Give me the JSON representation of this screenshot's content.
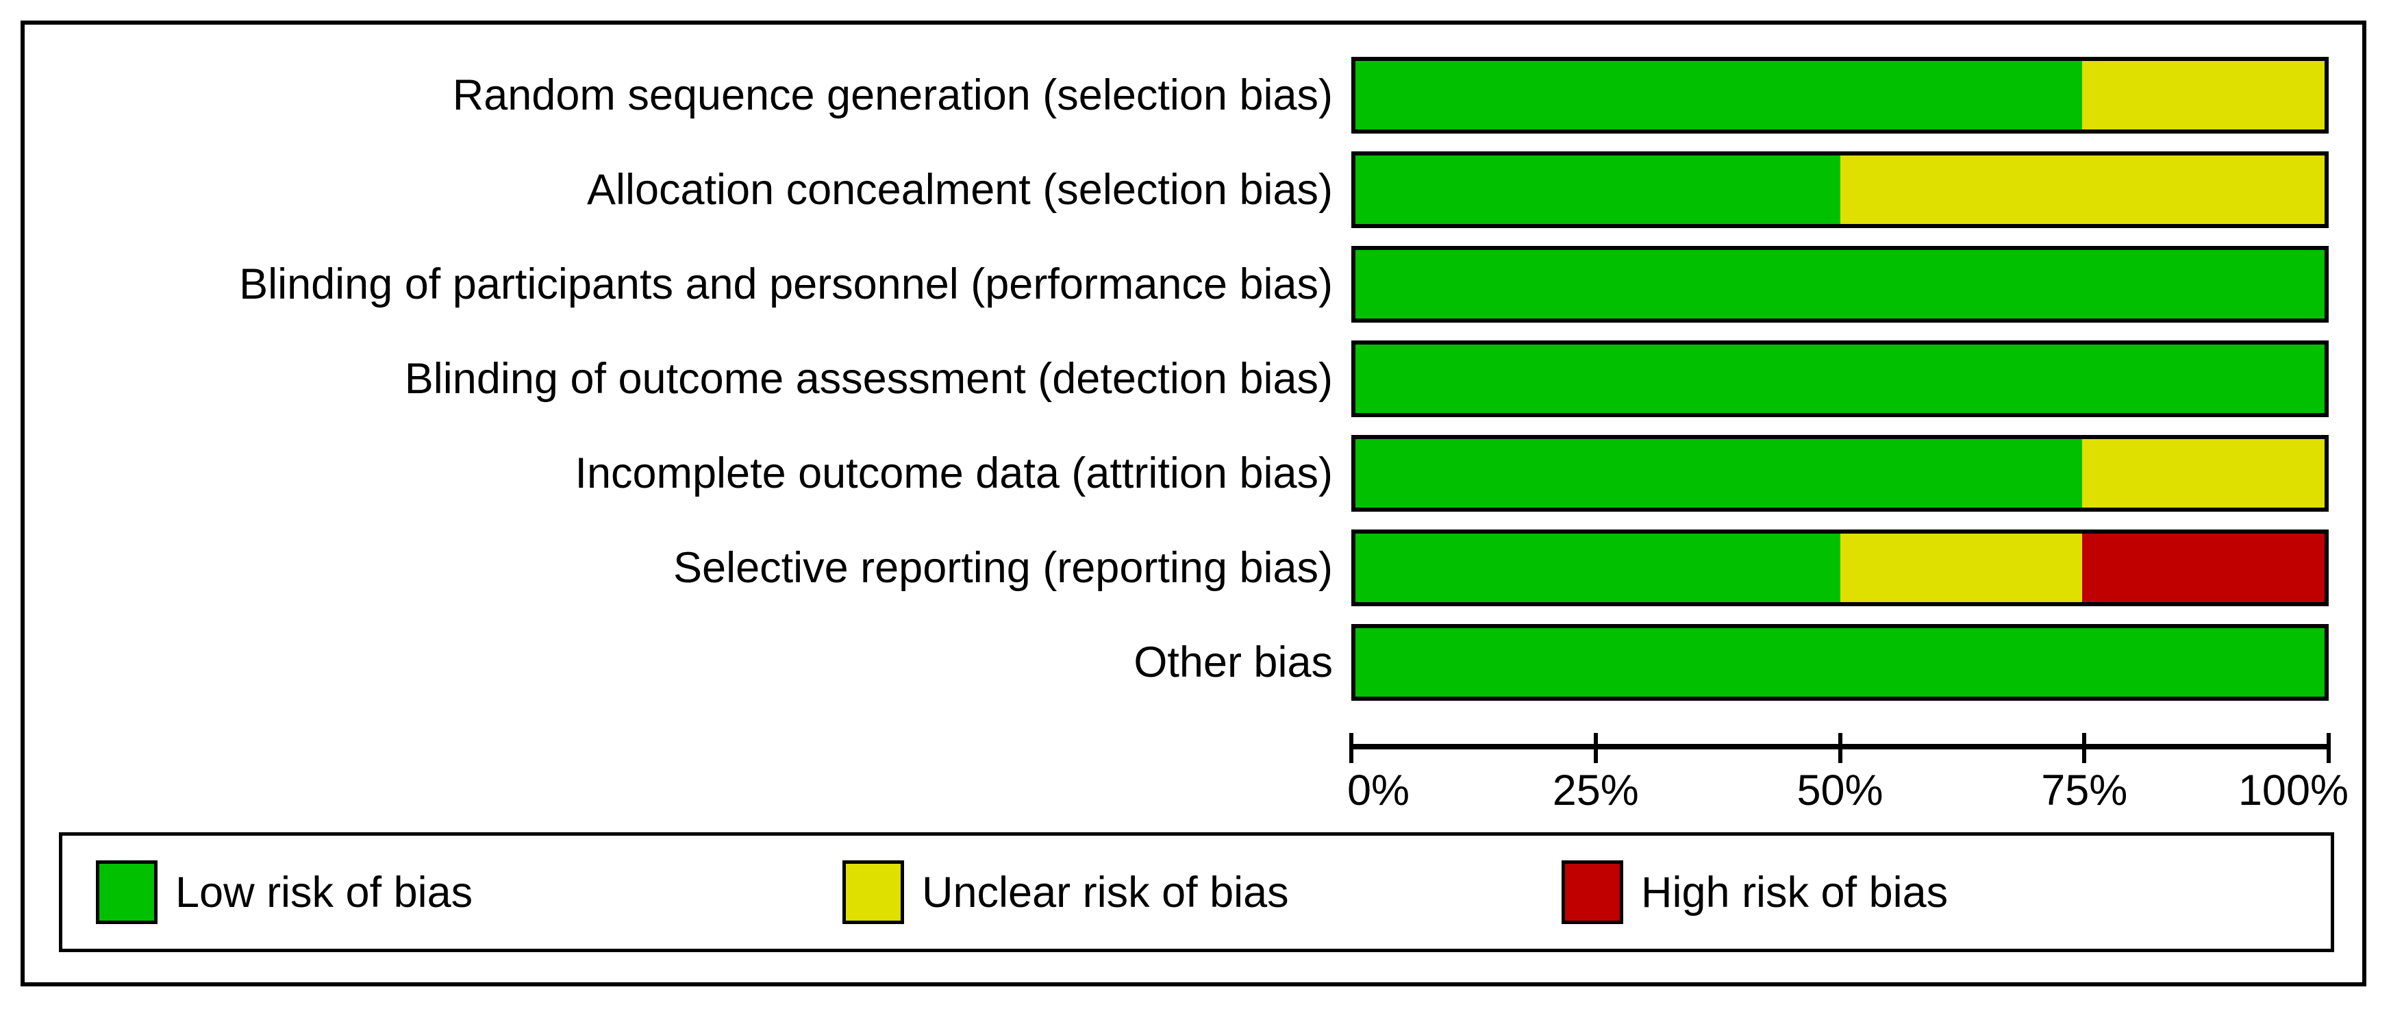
{
  "chart_data": {
    "type": "bar",
    "variant": "horizontal-stacked-percentage",
    "title": "",
    "categories": [
      "Random sequence generation (selection bias)",
      "Allocation concealment (selection bias)",
      "Blinding of participants and personnel (performance bias)",
      "Blinding of outcome assessment (detection bias)",
      "Incomplete outcome data (attrition bias)",
      "Selective reporting (reporting bias)",
      "Other bias"
    ],
    "series": [
      {
        "key": "low",
        "name": "Low risk of bias",
        "color": "#00c000",
        "values": [
          75,
          50,
          100,
          100,
          75,
          50,
          100
        ]
      },
      {
        "key": "unclear",
        "name": "Unclear risk of bias",
        "color": "#e0e000",
        "values": [
          25,
          50,
          0,
          0,
          25,
          25,
          0
        ]
      },
      {
        "key": "high",
        "name": "High risk of bias",
        "color": "#c00000",
        "values": [
          0,
          0,
          0,
          0,
          0,
          25,
          0
        ]
      }
    ],
    "x_ticks": [
      "0%",
      "25%",
      "50%",
      "75%",
      "100%"
    ],
    "xlim": [
      0,
      100
    ],
    "xlabel": "",
    "ylabel": "",
    "grid": false,
    "legend_position": "bottom"
  },
  "colors": {
    "frame_border": "#000000",
    "background": "#ffffff",
    "low_risk": "#00c000",
    "unclear_risk": "#e0e000",
    "high_risk": "#c00000"
  }
}
